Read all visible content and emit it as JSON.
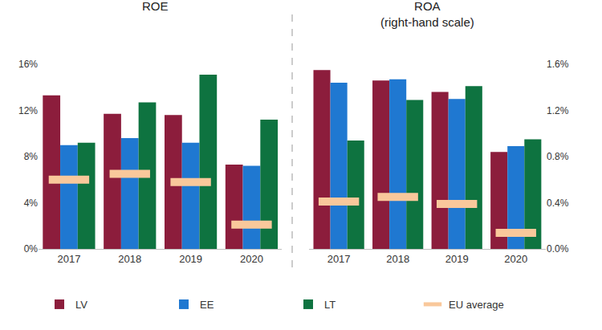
{
  "chart_data": [
    {
      "type": "bar",
      "title": "ROE",
      "categories": [
        "2017",
        "2018",
        "2019",
        "2020"
      ],
      "series": [
        {
          "name": "LV",
          "color": "#8c1d3c",
          "values": [
            13.3,
            11.7,
            11.6,
            7.3
          ]
        },
        {
          "name": "EE",
          "color": "#1f78d1",
          "values": [
            9.0,
            9.6,
            9.2,
            7.2
          ]
        },
        {
          "name": "LT",
          "color": "#0e7340",
          "values": [
            9.2,
            12.7,
            15.1,
            11.2
          ]
        },
        {
          "name": "EU average",
          "color": "#f9c89b",
          "type": "scatter",
          "marker": "dash",
          "values": [
            6.0,
            6.5,
            5.8,
            2.1
          ]
        }
      ],
      "ylim": [
        0,
        16
      ],
      "yticks": [
        {
          "value": 0,
          "label": "0%"
        },
        {
          "value": 4,
          "label": "4%"
        },
        {
          "value": 8,
          "label": "8%"
        },
        {
          "value": 12,
          "label": "12%"
        },
        {
          "value": 16,
          "label": "16%"
        }
      ],
      "grid": false,
      "legend": "bottom"
    },
    {
      "type": "bar",
      "title": "ROA (right-hand scale)",
      "categories": [
        "2017",
        "2018",
        "2019",
        "2020"
      ],
      "series": [
        {
          "name": "LV",
          "color": "#8c1d3c",
          "values": [
            1.55,
            1.46,
            1.36,
            0.84
          ]
        },
        {
          "name": "EE",
          "color": "#1f78d1",
          "values": [
            1.44,
            1.47,
            1.3,
            0.89
          ]
        },
        {
          "name": "LT",
          "color": "#0e7340",
          "values": [
            0.94,
            1.29,
            1.41,
            0.95
          ]
        },
        {
          "name": "EU average",
          "color": "#f9c89b",
          "type": "scatter",
          "marker": "dash",
          "values": [
            0.41,
            0.45,
            0.39,
            0.14
          ]
        }
      ],
      "ylim": [
        0,
        1.6
      ],
      "yticks": [
        {
          "value": 0,
          "label": "0.0%"
        },
        {
          "value": 0.4,
          "label": "0.4%"
        },
        {
          "value": 0.8,
          "label": "0.8%"
        },
        {
          "value": 1.2,
          "label": "1.2%"
        },
        {
          "value": 1.6,
          "label": "1.6%"
        }
      ],
      "grid": false,
      "legend": "bottom"
    }
  ]
}
